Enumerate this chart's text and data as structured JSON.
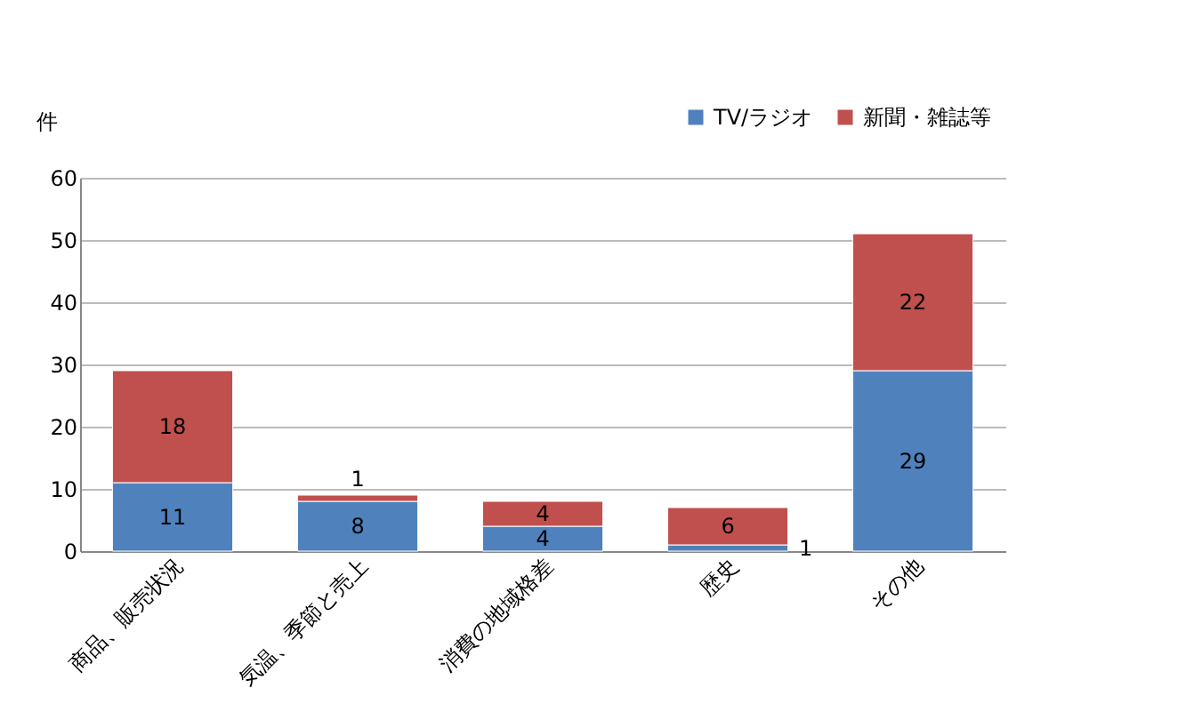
{
  "chart_data": {
    "type": "bar",
    "stacked": true,
    "ylabel": "件",
    "categories": [
      "商品、販売状況",
      "気温、季節と売上",
      "消費の地域格差",
      "歴史",
      "その他"
    ],
    "series": [
      {
        "name": "TV/ラジオ",
        "color": "#4f81bd",
        "values": [
          11,
          8,
          4,
          1,
          29
        ]
      },
      {
        "name": "新聞・雑誌等",
        "color": "#c0504d",
        "values": [
          18,
          1,
          4,
          6,
          22
        ]
      }
    ],
    "ylim": [
      0,
      60
    ],
    "yticks": [
      0,
      10,
      20,
      30,
      40,
      50,
      60
    ],
    "grid": "y",
    "legend": "top right",
    "data_labels": true
  }
}
